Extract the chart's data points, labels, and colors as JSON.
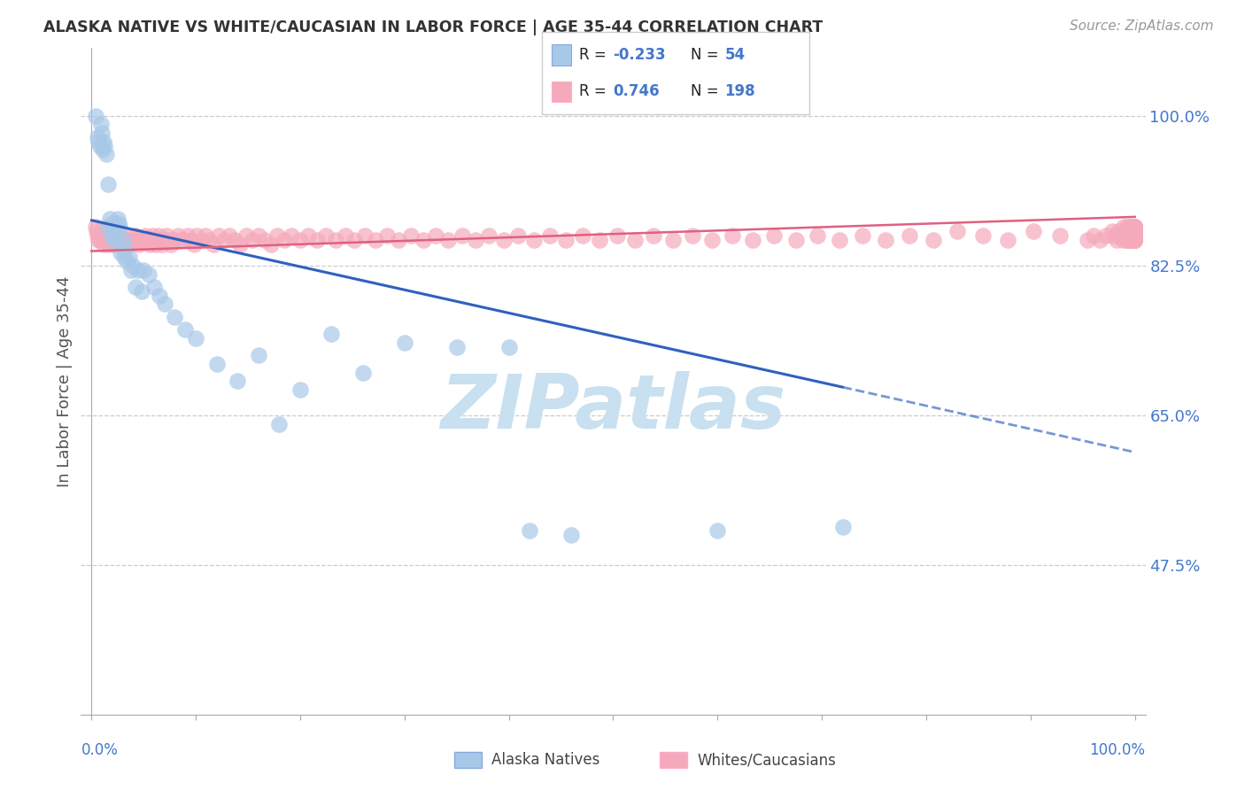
{
  "title": "ALASKA NATIVE VS WHITE/CAUCASIAN IN LABOR FORCE | AGE 35-44 CORRELATION CHART",
  "source": "Source: ZipAtlas.com",
  "ylabel": "In Labor Force | Age 35-44",
  "y_tick_labels": [
    "47.5%",
    "65.0%",
    "82.5%",
    "100.0%"
  ],
  "y_tick_values": [
    0.475,
    0.65,
    0.825,
    1.0
  ],
  "legend_r1": "R = -0.233",
  "legend_n1": "N =  54",
  "legend_r2": "R =  0.746",
  "legend_n2": "N = 198",
  "blue_scatter_color": "#A8C8E8",
  "pink_scatter_color": "#F5AABB",
  "blue_line_color": "#3060C0",
  "pink_line_color": "#E06080",
  "text_color": "#4477CC",
  "title_color": "#333333",
  "source_color": "#999999",
  "watermark": "ZIPatlas",
  "watermark_color": "#C8E0F0",
  "background": "#FFFFFF",
  "grid_color": "#CCCCCC",
  "axis_color": "#AAAAAA",
  "legend_box_color": "#EEEEEE",
  "ylim_min": 0.3,
  "ylim_max": 1.08,
  "xlim_min": -0.01,
  "xlim_max": 1.01,
  "alaska_trend_x0": 0.0,
  "alaska_trend_y0": 0.878,
  "alaska_trend_x1": 0.72,
  "alaska_trend_y1": 0.683,
  "alaska_trend_dash_x0": 0.72,
  "alaska_trend_dash_y0": 0.683,
  "alaska_trend_dash_x1": 1.0,
  "alaska_trend_dash_y1": 0.607,
  "white_trend_x0": 0.0,
  "white_trend_y0": 0.842,
  "white_trend_x1": 1.0,
  "white_trend_y1": 0.882,
  "alaska_x": [
    0.004,
    0.006,
    0.007,
    0.008,
    0.009,
    0.01,
    0.011,
    0.012,
    0.013,
    0.014,
    0.015,
    0.016,
    0.018,
    0.019,
    0.02,
    0.021,
    0.022,
    0.023,
    0.025,
    0.026,
    0.027,
    0.028,
    0.03,
    0.031,
    0.032,
    0.034,
    0.036,
    0.038,
    0.04,
    0.042,
    0.045,
    0.048,
    0.05,
    0.055,
    0.06,
    0.065,
    0.07,
    0.08,
    0.09,
    0.1,
    0.12,
    0.14,
    0.16,
    0.18,
    0.2,
    0.23,
    0.26,
    0.3,
    0.35,
    0.4,
    0.42,
    0.46,
    0.6,
    0.72
  ],
  "alaska_y": [
    1.0,
    0.975,
    0.97,
    0.965,
    0.99,
    0.98,
    0.96,
    0.97,
    0.965,
    0.955,
    0.87,
    0.92,
    0.88,
    0.86,
    0.875,
    0.865,
    0.855,
    0.86,
    0.88,
    0.875,
    0.87,
    0.84,
    0.855,
    0.835,
    0.845,
    0.83,
    0.835,
    0.82,
    0.825,
    0.8,
    0.82,
    0.795,
    0.82,
    0.815,
    0.8,
    0.79,
    0.78,
    0.765,
    0.75,
    0.74,
    0.71,
    0.69,
    0.72,
    0.64,
    0.68,
    0.745,
    0.7,
    0.735,
    0.73,
    0.73,
    0.515,
    0.51,
    0.515,
    0.52
  ],
  "white_x": [
    0.004,
    0.005,
    0.006,
    0.007,
    0.008,
    0.009,
    0.01,
    0.011,
    0.012,
    0.013,
    0.014,
    0.015,
    0.016,
    0.017,
    0.018,
    0.019,
    0.02,
    0.021,
    0.022,
    0.023,
    0.024,
    0.025,
    0.026,
    0.027,
    0.028,
    0.03,
    0.032,
    0.034,
    0.036,
    0.038,
    0.04,
    0.042,
    0.044,
    0.046,
    0.048,
    0.05,
    0.052,
    0.054,
    0.056,
    0.058,
    0.06,
    0.062,
    0.064,
    0.066,
    0.068,
    0.07,
    0.072,
    0.074,
    0.076,
    0.078,
    0.08,
    0.083,
    0.086,
    0.089,
    0.092,
    0.095,
    0.098,
    0.101,
    0.105,
    0.109,
    0.113,
    0.117,
    0.122,
    0.127,
    0.132,
    0.137,
    0.142,
    0.148,
    0.154,
    0.16,
    0.166,
    0.172,
    0.178,
    0.185,
    0.192,
    0.2,
    0.208,
    0.216,
    0.225,
    0.234,
    0.243,
    0.252,
    0.262,
    0.272,
    0.283,
    0.294,
    0.306,
    0.318,
    0.33,
    0.342,
    0.355,
    0.368,
    0.381,
    0.395,
    0.409,
    0.424,
    0.439,
    0.455,
    0.471,
    0.487,
    0.504,
    0.521,
    0.539,
    0.557,
    0.576,
    0.595,
    0.614,
    0.634,
    0.654,
    0.675,
    0.696,
    0.717,
    0.739,
    0.761,
    0.784,
    0.807,
    0.83,
    0.854,
    0.878,
    0.903,
    0.928,
    0.954,
    0.96,
    0.966,
    0.972,
    0.978,
    0.98,
    0.982,
    0.984,
    0.986,
    0.988,
    0.989,
    0.99,
    0.991,
    0.992,
    0.992,
    0.993,
    0.993,
    0.993,
    0.994,
    0.994,
    0.995,
    0.995,
    0.995,
    0.996,
    0.996,
    0.996,
    0.996,
    0.997,
    0.997,
    0.997,
    0.997,
    0.997,
    0.997,
    0.998,
    0.998,
    0.998,
    0.998,
    0.998,
    0.998,
    0.999,
    0.999,
    0.999,
    0.999,
    0.999,
    0.999,
    0.999,
    0.999,
    0.999,
    0.999,
    0.999,
    0.999,
    0.999,
    0.999,
    0.999,
    0.999,
    0.999,
    0.999,
    0.999,
    0.999,
    0.999,
    0.999,
    0.999,
    0.999,
    0.999,
    0.999,
    0.999,
    0.999,
    0.999,
    0.999,
    0.999,
    0.999,
    0.999,
    0.999,
    0.999,
    0.999,
    0.999,
    0.999,
    0.999,
    0.999
  ],
  "white_y": [
    0.87,
    0.865,
    0.86,
    0.855,
    0.855,
    0.86,
    0.865,
    0.855,
    0.85,
    0.86,
    0.865,
    0.855,
    0.86,
    0.85,
    0.865,
    0.855,
    0.86,
    0.85,
    0.855,
    0.865,
    0.85,
    0.855,
    0.86,
    0.855,
    0.85,
    0.855,
    0.86,
    0.855,
    0.85,
    0.855,
    0.855,
    0.86,
    0.855,
    0.85,
    0.855,
    0.855,
    0.86,
    0.855,
    0.85,
    0.86,
    0.855,
    0.85,
    0.86,
    0.855,
    0.85,
    0.855,
    0.86,
    0.855,
    0.85,
    0.855,
    0.855,
    0.86,
    0.855,
    0.855,
    0.86,
    0.855,
    0.85,
    0.86,
    0.855,
    0.86,
    0.855,
    0.85,
    0.86,
    0.855,
    0.86,
    0.855,
    0.85,
    0.86,
    0.855,
    0.86,
    0.855,
    0.85,
    0.86,
    0.855,
    0.86,
    0.855,
    0.86,
    0.855,
    0.86,
    0.855,
    0.86,
    0.855,
    0.86,
    0.855,
    0.86,
    0.855,
    0.86,
    0.855,
    0.86,
    0.855,
    0.86,
    0.855,
    0.86,
    0.855,
    0.86,
    0.855,
    0.86,
    0.855,
    0.86,
    0.855,
    0.86,
    0.855,
    0.86,
    0.855,
    0.86,
    0.855,
    0.86,
    0.855,
    0.86,
    0.855,
    0.86,
    0.855,
    0.86,
    0.855,
    0.86,
    0.855,
    0.865,
    0.86,
    0.855,
    0.865,
    0.86,
    0.855,
    0.86,
    0.855,
    0.86,
    0.865,
    0.86,
    0.855,
    0.865,
    0.86,
    0.855,
    0.87,
    0.86,
    0.865,
    0.855,
    0.865,
    0.86,
    0.87,
    0.855,
    0.865,
    0.86,
    0.87,
    0.855,
    0.865,
    0.86,
    0.87,
    0.855,
    0.865,
    0.86,
    0.87,
    0.855,
    0.865,
    0.86,
    0.87,
    0.855,
    0.865,
    0.86,
    0.87,
    0.855,
    0.865,
    0.86,
    0.87,
    0.855,
    0.865,
    0.86,
    0.87,
    0.855,
    0.865,
    0.86,
    0.87,
    0.855,
    0.865,
    0.86,
    0.87,
    0.855,
    0.865,
    0.86,
    0.87,
    0.855,
    0.865,
    0.86,
    0.87,
    0.855,
    0.865,
    0.86,
    0.87,
    0.855,
    0.865,
    0.86,
    0.87,
    0.855,
    0.865,
    0.86,
    0.87,
    0.855,
    0.865,
    0.86,
    0.87,
    0.855,
    0.865
  ]
}
